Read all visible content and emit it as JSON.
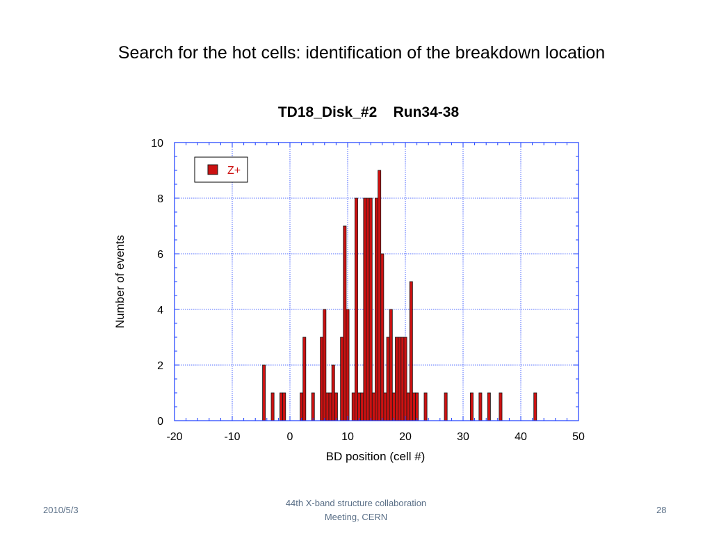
{
  "slide": {
    "title": "Search for the hot cells: identification of the breakdown location",
    "footer_left": "2010/5/3",
    "footer_center_line1": "44th X-band structure collaboration",
    "footer_center_line2": "Meeting, CERN",
    "page_number": "28"
  },
  "colors": {
    "bar_fill": "#cc1111",
    "bar_stroke": "#1a1a1a",
    "grid": "#1a3cff",
    "legend_text": "#cc1111"
  },
  "chart_data": {
    "type": "bar",
    "title": "TD18_Disk_#2    Run34-38",
    "xlabel": "BD position (cell #)",
    "ylabel": "Number of events",
    "xlim": [
      -20,
      50
    ],
    "ylim": [
      0,
      10
    ],
    "xticks": [
      -20,
      -10,
      0,
      10,
      20,
      30,
      40,
      50
    ],
    "yticks": [
      0,
      2,
      4,
      6,
      8,
      10
    ],
    "grid": true,
    "legend_position": "top-left",
    "series": [
      {
        "name": "Z+",
        "x": [
          -4.5,
          -3,
          -1.5,
          -1,
          2,
          2.5,
          4,
          5.5,
          6,
          6.5,
          7,
          7.5,
          8,
          9,
          9.5,
          10,
          11,
          11.5,
          12,
          12.5,
          13,
          13.5,
          14,
          14.5,
          15,
          15.5,
          16,
          16.5,
          17,
          17.5,
          18,
          18.5,
          19,
          19.5,
          20,
          20.5,
          21,
          21.5,
          22,
          23.5,
          27,
          31.5,
          33,
          34.5,
          36.5,
          42.5
        ],
        "values": [
          2,
          1,
          1,
          1,
          1,
          3,
          1,
          3,
          4,
          1,
          1,
          2,
          1,
          3,
          7,
          4,
          1,
          8,
          1,
          1,
          8,
          8,
          8,
          1,
          8,
          9,
          6,
          1,
          3,
          4,
          1,
          3,
          3,
          3,
          3,
          1,
          5,
          1,
          1,
          1,
          1,
          1,
          1,
          1,
          1,
          1
        ]
      }
    ]
  }
}
